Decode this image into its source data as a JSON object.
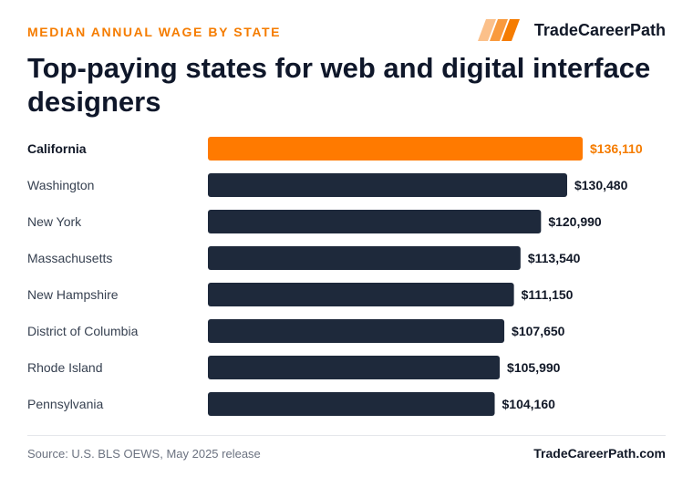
{
  "header": {
    "eyebrow": "MEDIAN ANNUAL WAGE BY STATE",
    "brand_name": "TradeCareerPath",
    "brand_icon": "stripes-logo-icon",
    "title": "Top-paying states for web and digital interface designers"
  },
  "footer": {
    "source": "Source: U.S. BLS OEWS, May 2025 release",
    "brand_url": "TradeCareerPath.com"
  },
  "colors": {
    "highlight": "#ff7a00",
    "bar": "#1e293b",
    "highlight_text": "#f57c00",
    "label": "#374151",
    "value": "#111827"
  },
  "chart_data": {
    "type": "bar",
    "orientation": "horizontal",
    "categories": [
      "California",
      "Washington",
      "New York",
      "Massachusetts",
      "New Hampshire",
      "District of Columbia",
      "Rhode Island",
      "Pennsylvania"
    ],
    "values": [
      136110,
      130480,
      120990,
      113540,
      111150,
      107650,
      105990,
      104160
    ],
    "value_labels": [
      "$136,110",
      "$130,480",
      "$120,990",
      "$113,540",
      "$111,150",
      "$107,650",
      "$105,990",
      "$104,160"
    ],
    "highlighted": "California",
    "title": "",
    "xlabel": "",
    "ylabel": "",
    "grid": false,
    "legend": "none"
  }
}
